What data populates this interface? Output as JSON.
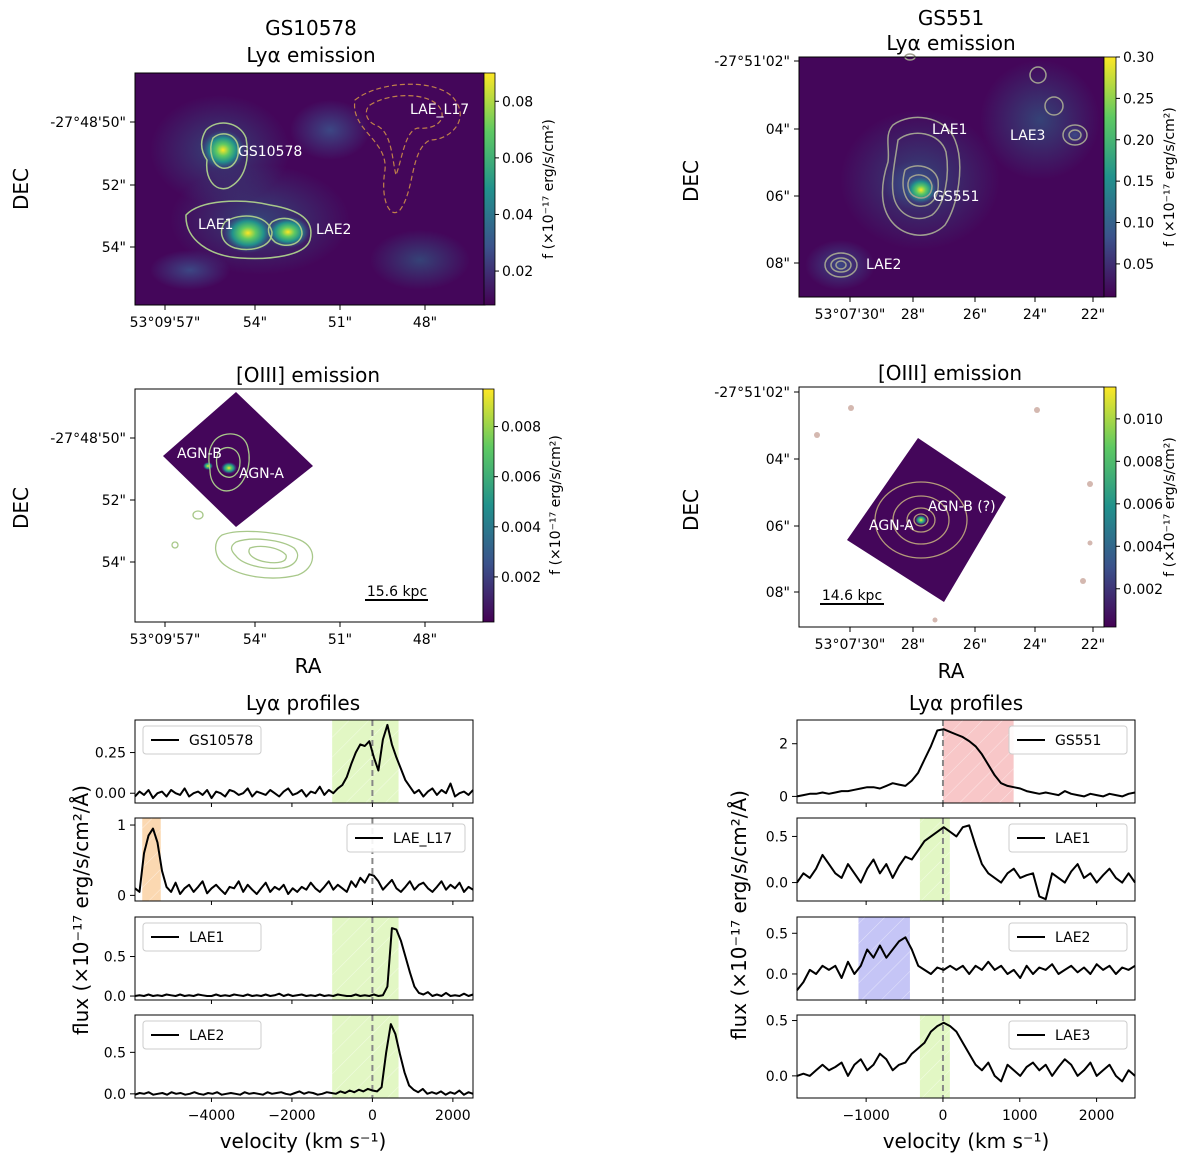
{
  "colors": {
    "viridis": [
      "#440154",
      "#3b528b",
      "#21918c",
      "#5ec962",
      "#fde725"
    ],
    "map_background": "#44065a",
    "green_band": "#e2f7c4",
    "orange_band": "#fbd8b1",
    "red_band": "#f8c7c8",
    "blue_band": "#c5c5f6",
    "contour_green": "#a8c88a",
    "contour_orange": "#c0804a",
    "contour_grey": "#a0a090"
  },
  "shared": {
    "ylabel_dec": "DEC",
    "xlabel_ra": "RA",
    "cbar_label": "f (×10⁻¹⁷ erg/s/cm²)",
    "profile_xlabel": "velocity (km s⁻¹)",
    "profile_ylabel": "flux (×10⁻¹⁷ erg/s/cm²/Å)"
  },
  "chart_data": [
    {
      "type": "heatmap",
      "id": "gs10578-lya",
      "title": "GS10578",
      "subtitle": "Lyα emission",
      "ra_ticks": [
        "53°09'57\"",
        "54\"",
        "51\"",
        "48\""
      ],
      "dec_ticks": [
        "-27°48'50\"",
        "52\"",
        "54\""
      ],
      "colorbar": {
        "ticks": [
          "0.02",
          "0.04",
          "0.06",
          "0.08"
        ],
        "range": [
          0.008,
          0.09
        ]
      },
      "sources": [
        "GS10578",
        "LAE1",
        "LAE2",
        "LAE_L17"
      ]
    },
    {
      "type": "heatmap",
      "id": "gs551-lya",
      "title": "GS551",
      "subtitle": "Lyα emission",
      "ra_ticks": [
        "53°07'30\"",
        "28\"",
        "26\"",
        "24\"",
        "22\""
      ],
      "dec_ticks": [
        "-27°51'02\"",
        "04\"",
        "06\"",
        "08\""
      ],
      "colorbar": {
        "ticks": [
          "0.05",
          "0.10",
          "0.15",
          "0.20",
          "0.25",
          "0.30"
        ],
        "range": [
          0.01,
          0.3
        ]
      },
      "sources": [
        "LAE1",
        "LAE3",
        "GS551",
        "LAE2"
      ]
    },
    {
      "type": "heatmap",
      "id": "gs10578-oiii",
      "title": "[OIII] emission",
      "ra_ticks": [
        "53°09'57\"",
        "54\"",
        "51\"",
        "48\""
      ],
      "dec_ticks": [
        "-27°48'50\"",
        "52\"",
        "54\""
      ],
      "colorbar": {
        "ticks": [
          "0.002",
          "0.004",
          "0.006",
          "0.008"
        ],
        "range": [
          0.0002,
          0.0095
        ]
      },
      "sources": [
        "AGN-B",
        "AGN-A"
      ],
      "scalebar": "15.6 kpc"
    },
    {
      "type": "heatmap",
      "id": "gs551-oiii",
      "title": "[OIII] emission",
      "ra_ticks": [
        "53°07'30\"",
        "28\"",
        "26\"",
        "24\"",
        "22\""
      ],
      "dec_ticks": [
        "-27°51'02\"",
        "04\"",
        "06\"",
        "08\""
      ],
      "colorbar": {
        "ticks": [
          "0.002",
          "0.004",
          "0.006",
          "0.008",
          "0.010"
        ],
        "range": [
          0.0002,
          0.0115
        ]
      },
      "sources": [
        "AGN-A",
        "AGN-B (?)"
      ],
      "scalebar": "14.6 kpc"
    },
    {
      "type": "line",
      "id": "gs10578-profiles",
      "title": "Lyα profiles",
      "xlim": [
        -5900,
        2500
      ],
      "xticks": [
        -4000,
        -2000,
        0,
        2000
      ],
      "xtick_labels": [
        "−4000",
        "−2000",
        "0",
        "2000"
      ],
      "reference_velocity": 0,
      "panels": [
        {
          "name": "GS10578",
          "legend_loc": "upper left",
          "ylim": [
            -0.06,
            0.45
          ],
          "yticks": [
            0.0,
            0.25
          ],
          "ytick_labels": [
            "0.00",
            "0.25"
          ],
          "band": {
            "range": [
              -1000,
              650
            ],
            "color": "green"
          },
          "line": {
            "xmin": -5900,
            "xmax": 2500,
            "y": [
              -0.02,
              0.01,
              -0.01,
              0.02,
              -0.03,
              0.0,
              0.01,
              -0.02,
              0.02,
              0.0,
              -0.01,
              0.03,
              -0.02,
              0.0,
              0.01,
              -0.01,
              0.02,
              -0.03,
              0.01,
              0.0,
              -0.02,
              0.02,
              0.01,
              -0.01,
              0.0,
              0.03,
              -0.02,
              0.01,
              0.0,
              -0.01,
              0.02,
              0.0,
              -0.02,
              0.01,
              0.03,
              -0.01,
              0.0,
              0.02,
              -0.02,
              0.01,
              0.0,
              0.04,
              -0.01,
              0.02,
              0.0,
              0.03,
              0.05,
              0.1,
              0.18,
              0.25,
              0.3,
              0.29,
              0.32,
              0.22,
              0.14,
              0.33,
              0.42,
              0.3,
              0.22,
              0.15,
              0.08,
              0.04,
              0.0,
              0.02,
              -0.02,
              0.01,
              0.03,
              -0.01,
              0.02,
              0.0,
              0.06,
              -0.02,
              0.0,
              0.01,
              -0.01,
              0.02
            ]
          }
        },
        {
          "name": "LAE_L17",
          "legend_loc": "upper right",
          "ylim": [
            -0.08,
            1.1
          ],
          "yticks": [
            0,
            1
          ],
          "ytick_labels": [
            "0",
            "1"
          ],
          "band": {
            "range": [
              -5720,
              -5260
            ],
            "color": "orange"
          },
          "line": {
            "xmin": -5900,
            "xmax": 2500,
            "y": [
              0.1,
              0.05,
              0.6,
              0.85,
              0.95,
              0.75,
              0.35,
              0.12,
              0.05,
              0.18,
              0.02,
              0.1,
              0.15,
              0.05,
              0.12,
              0.2,
              0.03,
              0.1,
              0.15,
              0.08,
              0.02,
              0.12,
              0.1,
              0.2,
              0.05,
              0.15,
              0.08,
              0.02,
              0.1,
              0.18,
              0.05,
              0.12,
              0.08,
              0.15,
              0.02,
              0.1,
              0.05,
              0.12,
              0.08,
              0.18,
              0.1,
              0.05,
              0.12,
              0.2,
              0.08,
              0.15,
              0.1,
              0.05,
              0.2,
              0.12,
              0.25,
              0.18,
              0.3,
              0.28,
              0.2,
              0.08,
              0.15,
              0.22,
              0.1,
              0.05,
              0.12,
              0.2,
              0.08,
              0.15,
              0.18,
              0.1,
              0.05,
              0.12,
              0.2,
              0.08,
              0.15,
              0.1,
              0.18,
              0.05,
              0.12,
              0.08
            ]
          }
        },
        {
          "name": "LAE1",
          "legend_loc": "upper left",
          "ylim": [
            -0.05,
            1.0
          ],
          "yticks": [
            0.0,
            0.5
          ],
          "ytick_labels": [
            "0.0",
            "0.5"
          ],
          "band": {
            "range": [
              -1000,
              650
            ],
            "color": "green"
          },
          "line": {
            "xmin": -5900,
            "xmax": 2500,
            "y": [
              0.0,
              0.01,
              0.0,
              0.02,
              0.0,
              0.01,
              0.0,
              0.02,
              0.01,
              0.0,
              0.02,
              0.0,
              0.01,
              0.0,
              0.02,
              0.01,
              0.0,
              0.0,
              0.02,
              0.0,
              0.01,
              0.0,
              0.02,
              0.01,
              0.0,
              0.02,
              0.0,
              0.01,
              0.0,
              0.02,
              0.0,
              0.01,
              0.03,
              0.0,
              0.02,
              0.0,
              0.01,
              0.02,
              0.0,
              0.01,
              0.0,
              0.02,
              0.0,
              0.01,
              0.0,
              0.02,
              0.01,
              0.0,
              0.0,
              0.02,
              0.0,
              0.01,
              0.0,
              0.02,
              0.0,
              0.01,
              0.12,
              0.86,
              0.84,
              0.7,
              0.5,
              0.3,
              0.12,
              0.04,
              0.02,
              0.05,
              0.0,
              0.02,
              0.0,
              0.04,
              0.0,
              0.01,
              0.0,
              0.03,
              0.0,
              0.02
            ]
          }
        },
        {
          "name": "LAE2",
          "legend_loc": "upper left",
          "ylim": [
            -0.05,
            0.95
          ],
          "yticks": [
            0.0,
            0.5
          ],
          "ytick_labels": [
            "0.0",
            "0.5"
          ],
          "band": {
            "range": [
              -1000,
              650
            ],
            "color": "green"
          },
          "line": {
            "xmin": -5900,
            "xmax": 2500,
            "y": [
              -0.01,
              0.01,
              0.0,
              0.02,
              -0.01,
              0.0,
              0.01,
              -0.01,
              0.02,
              0.0,
              0.01,
              -0.01,
              0.0,
              0.02,
              0.0,
              -0.01,
              0.01,
              0.0,
              0.02,
              -0.01,
              0.0,
              0.01,
              0.0,
              -0.01,
              0.02,
              0.0,
              0.01,
              0.0,
              -0.01,
              0.02,
              0.0,
              0.01,
              0.02,
              0.0,
              -0.01,
              0.01,
              0.03,
              0.0,
              0.02,
              0.01,
              -0.01,
              0.0,
              0.02,
              0.01,
              0.0,
              0.03,
              0.01,
              0.04,
              0.02,
              0.05,
              0.03,
              0.06,
              0.04,
              0.03,
              0.08,
              0.5,
              0.84,
              0.72,
              0.48,
              0.26,
              0.1,
              0.05,
              0.02,
              0.06,
              0.0,
              0.02,
              0.0,
              0.03,
              -0.01,
              0.02,
              0.0,
              0.04,
              -0.01,
              0.02,
              0.0
            ]
          }
        }
      ]
    },
    {
      "type": "line",
      "id": "gs551-profiles",
      "title": "Lyα profiles",
      "xlim": [
        -1900,
        2500
      ],
      "xticks": [
        -1000,
        0,
        1000,
        2000
      ],
      "xtick_labels": [
        "−1000",
        "0",
        "1000",
        "2000"
      ],
      "reference_velocity": 0,
      "panels": [
        {
          "name": "GS551",
          "legend_loc": "upper right",
          "ylim": [
            -0.25,
            2.9
          ],
          "yticks": [
            0,
            2
          ],
          "ytick_labels": [
            "0",
            "2"
          ],
          "band": {
            "range": [
              0,
              920
            ],
            "color": "red"
          },
          "line": {
            "xmin": -1900,
            "xmax": 2500,
            "y": [
              0.0,
              0.05,
              0.1,
              0.1,
              0.15,
              0.1,
              0.15,
              0.2,
              0.2,
              0.25,
              0.3,
              0.35,
              0.35,
              0.3,
              0.4,
              0.5,
              0.45,
              0.4,
              0.6,
              0.9,
              1.4,
              1.9,
              2.5,
              2.55,
              2.45,
              2.35,
              2.25,
              2.1,
              1.9,
              1.6,
              1.2,
              0.8,
              0.5,
              0.4,
              0.35,
              0.3,
              0.2,
              0.15,
              0.1,
              0.15,
              0.1,
              0.05,
              0.2,
              0.1,
              0.05,
              0.0,
              0.1,
              0.05,
              0.0,
              0.1,
              0.05,
              0.0,
              0.1,
              0.15
            ]
          }
        },
        {
          "name": "LAE1",
          "legend_loc": "upper right",
          "ylim": [
            -0.2,
            0.7
          ],
          "yticks": [
            0.0,
            0.5
          ],
          "ytick_labels": [
            "0.0",
            "0.5"
          ],
          "band": {
            "range": [
              -300,
              90
            ],
            "color": "green"
          },
          "line": {
            "xmin": -1900,
            "xmax": 2500,
            "y": [
              0.0,
              0.1,
              0.05,
              0.15,
              0.3,
              0.2,
              0.1,
              0.05,
              0.2,
              0.1,
              0.0,
              0.15,
              0.25,
              0.1,
              0.2,
              0.05,
              0.18,
              0.28,
              0.25,
              0.35,
              0.45,
              0.5,
              0.55,
              0.6,
              0.55,
              0.5,
              0.6,
              0.62,
              0.4,
              0.2,
              0.1,
              0.05,
              0.0,
              0.1,
              0.15,
              0.05,
              0.08,
              0.1,
              -0.15,
              -0.18,
              0.1,
              0.05,
              0.0,
              0.12,
              0.2,
              0.05,
              0.1,
              0.0,
              0.08,
              0.15,
              0.05,
              0.0,
              0.1,
              0.0
            ]
          }
        },
        {
          "name": "LAE2",
          "legend_loc": "upper right",
          "ylim": [
            -0.32,
            0.7
          ],
          "yticks": [
            0.0,
            0.5
          ],
          "ytick_labels": [
            "0.0",
            "0.5"
          ],
          "band": {
            "range": [
              -1100,
              -430
            ],
            "color": "blue"
          },
          "line": {
            "xmin": -1900,
            "xmax": 2500,
            "y": [
              -0.2,
              -0.1,
              0.05,
              0.0,
              0.1,
              0.05,
              0.1,
              -0.05,
              0.15,
              0.0,
              0.1,
              0.3,
              0.2,
              0.35,
              0.2,
              0.3,
              0.4,
              0.45,
              0.3,
              0.1,
              0.05,
              0.0,
              0.08,
              0.05,
              0.1,
              0.05,
              0.1,
              0.0,
              0.1,
              0.05,
              0.15,
              0.05,
              0.1,
              0.0,
              0.05,
              -0.05,
              0.1,
              0.0,
              0.08,
              0.05,
              0.12,
              0.0,
              0.05,
              0.1,
              0.02,
              0.08,
              0.0,
              0.12,
              0.05,
              0.1,
              0.0,
              0.08,
              0.05,
              0.1
            ]
          }
        },
        {
          "name": "LAE3",
          "legend_loc": "upper right",
          "ylim": [
            -0.2,
            0.55
          ],
          "yticks": [
            0.0,
            0.5
          ],
          "ytick_labels": [
            "0.0",
            "0.5"
          ],
          "band": {
            "range": [
              -300,
              90
            ],
            "color": "green"
          },
          "line": {
            "xmin": -1900,
            "xmax": 2500,
            "y": [
              0.0,
              0.02,
              0.0,
              0.05,
              0.1,
              0.05,
              0.08,
              0.12,
              0.0,
              0.1,
              0.15,
              0.05,
              0.1,
              0.2,
              0.15,
              0.05,
              0.1,
              0.12,
              0.2,
              0.25,
              0.3,
              0.4,
              0.45,
              0.48,
              0.45,
              0.4,
              0.3,
              0.2,
              0.1,
              0.05,
              0.12,
              0.0,
              -0.05,
              0.1,
              0.05,
              0.0,
              0.08,
              0.12,
              0.05,
              0.1,
              0.0,
              0.08,
              0.15,
              0.1,
              0.0,
              0.05,
              0.12,
              0.0,
              0.05,
              0.1,
              0.0,
              -0.05,
              0.05,
              0.0
            ]
          }
        }
      ]
    }
  ]
}
